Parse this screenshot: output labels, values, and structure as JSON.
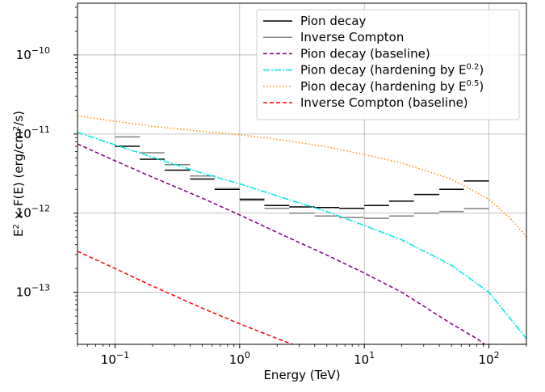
{
  "chart_data": {
    "type": "line",
    "xlabel": "Energy (TeV)",
    "ylabel_parts": [
      "E",
      "2",
      " × F(E) (erg/cm",
      "2",
      "/s)"
    ],
    "xscale": "log",
    "yscale": "log",
    "xlim": [
      0.05,
      200
    ],
    "ylim": [
      2.2e-14,
      4.5e-10
    ],
    "grid": true,
    "legend_placement": "upper-right",
    "x_ticks": [
      {
        "value": 0.1,
        "mantissa": "10",
        "exp": "−1"
      },
      {
        "value": 1,
        "mantissa": "10",
        "exp": "0"
      },
      {
        "value": 10,
        "mantissa": "10",
        "exp": "1"
      },
      {
        "value": 100,
        "mantissa": "10",
        "exp": "2"
      }
    ],
    "y_ticks": [
      {
        "value": 1e-13,
        "mantissa": "10",
        "exp": "−13"
      },
      {
        "value": 1e-12,
        "mantissa": "10",
        "exp": "−12"
      },
      {
        "value": 1e-11,
        "mantissa": "10",
        "exp": "−11"
      },
      {
        "value": 1e-10,
        "mantissa": "10",
        "exp": "−10"
      }
    ],
    "series": [
      {
        "name": "Pion decay",
        "color": "#000000",
        "style": "step",
        "bins": [
          [
            0.1,
            0.158,
            7e-12
          ],
          [
            0.158,
            0.25,
            4.8e-12
          ],
          [
            0.25,
            0.4,
            3.5e-12
          ],
          [
            0.4,
            0.63,
            2.7e-12
          ],
          [
            0.63,
            1.0,
            2e-12
          ],
          [
            1.0,
            1.58,
            1.5e-12
          ],
          [
            1.58,
            2.5,
            1.25e-12
          ],
          [
            2.5,
            4.0,
            1.2e-12
          ],
          [
            4.0,
            6.3,
            1.18e-12
          ],
          [
            6.3,
            10,
            1.15e-12
          ],
          [
            10,
            15.8,
            1.25e-12
          ],
          [
            15.8,
            25,
            1.42e-12
          ],
          [
            25,
            40,
            1.72e-12
          ],
          [
            40,
            63,
            2e-12
          ],
          [
            63,
            100,
            2.55e-12
          ]
        ]
      },
      {
        "name": "Inverse Compton",
        "color": "#808080",
        "style": "step",
        "bins": [
          [
            0.1,
            0.158,
            9.2e-12
          ],
          [
            0.158,
            0.25,
            5.8e-12
          ],
          [
            0.25,
            0.4,
            4.1e-12
          ],
          [
            0.4,
            0.63,
            2.95e-12
          ],
          [
            0.63,
            1.0,
            2.05e-12
          ],
          [
            1.0,
            1.58,
            1.45e-12
          ],
          [
            1.58,
            2.5,
            1.15e-12
          ],
          [
            2.5,
            4.0,
            1e-12
          ],
          [
            4.0,
            6.3,
            9.2e-13
          ],
          [
            6.3,
            10,
            8.8e-13
          ],
          [
            10,
            15.8,
            8.6e-13
          ],
          [
            15.8,
            25,
            9.2e-13
          ],
          [
            25,
            40,
            1e-12
          ],
          [
            40,
            63,
            1.05e-12
          ],
          [
            63,
            100,
            1.14e-12
          ]
        ]
      },
      {
        "name": "Pion decay (baseline)",
        "color": "#800080",
        "dash": "5,3",
        "x": [
          0.05,
          0.1,
          0.2,
          0.5,
          1,
          2,
          5,
          10,
          20,
          50,
          80,
          100
        ],
        "y": [
          7.5e-12,
          4.6e-12,
          2.85e-12,
          1.55e-12,
          9.5e-13,
          5.7e-13,
          2.95e-13,
          1.75e-13,
          1e-13,
          4e-14,
          2.6e-14,
          2e-14
        ]
      },
      {
        "name": "Pion decay (hardening by E",
        "sup": "0.2",
        "suffix": ")",
        "color": "#00e5e5",
        "dash": "8,2,2,2",
        "x": [
          0.05,
          0.1,
          0.2,
          0.5,
          1,
          2,
          5,
          10,
          20,
          50,
          100,
          200
        ],
        "y": [
          1.05e-11,
          7.3e-12,
          5.1e-12,
          3.2e-12,
          2.35e-12,
          1.65e-12,
          1.05e-12,
          7e-13,
          4.6e-13,
          2.2e-13,
          1e-13,
          2.6e-14
        ]
      },
      {
        "name": "Pion decay (hardening by E",
        "sup": "0.5",
        "suffix": ")",
        "color": "#ff8c00",
        "dash": "1.5,2.5",
        "x": [
          0.05,
          0.1,
          0.2,
          0.5,
          1,
          2,
          5,
          10,
          20,
          50,
          100,
          150,
          200
        ],
        "y": [
          1.7e-11,
          1.45e-11,
          1.25e-11,
          1.08e-11,
          9.8e-12,
          8.6e-12,
          6.9e-12,
          5.5e-12,
          4.3e-12,
          2.7e-12,
          1.5e-12,
          8.5e-13,
          5e-13
        ]
      },
      {
        "name": "Inverse Compton (baseline)",
        "color": "#ff0000",
        "dash": "5,3",
        "x": [
          0.05,
          0.1,
          0.2,
          0.5,
          1,
          2,
          3
        ],
        "y": [
          3.3e-13,
          2e-13,
          1.2e-13,
          6.3e-14,
          4e-14,
          2.6e-14,
          2.05e-14
        ]
      }
    ]
  }
}
